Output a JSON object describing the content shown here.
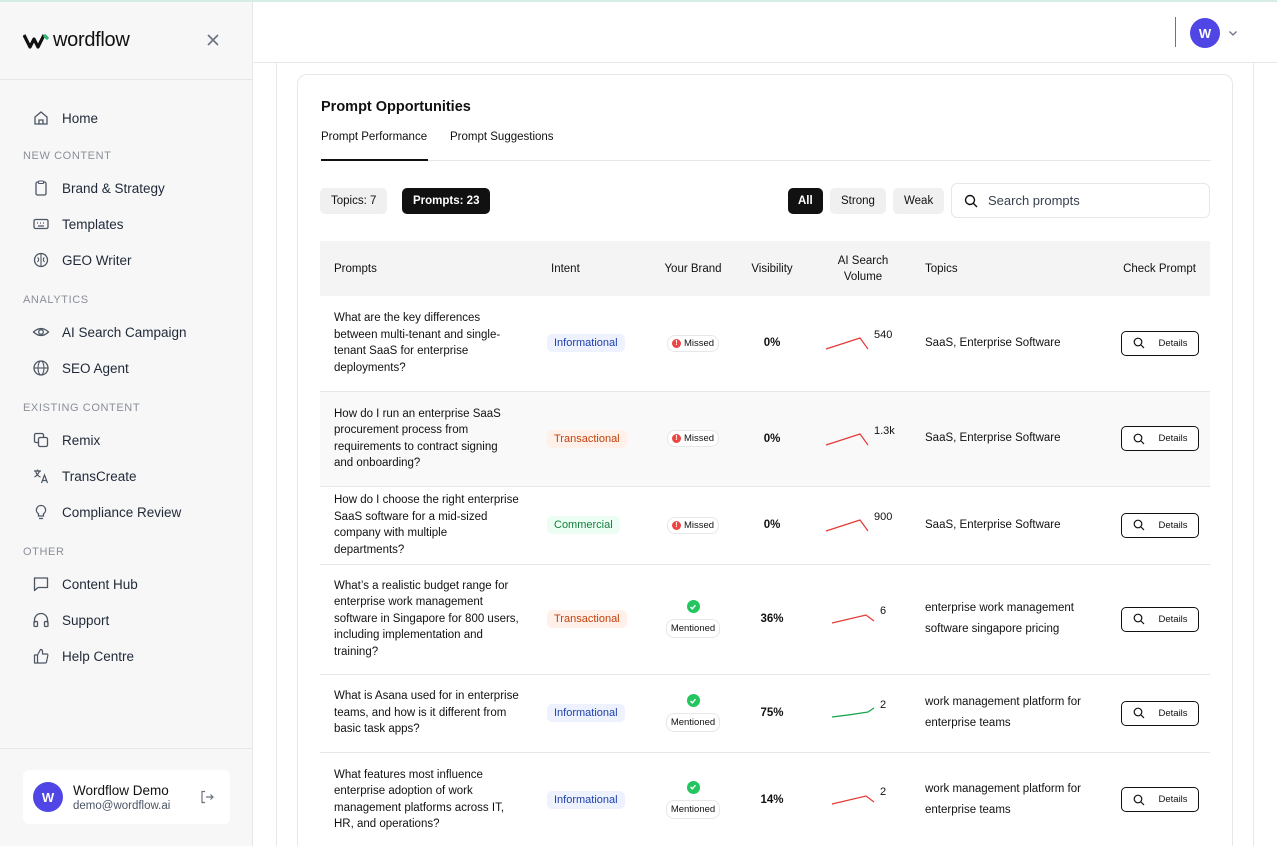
{
  "brand": {
    "name": "wordflow"
  },
  "sidebar": {
    "home": "Home",
    "sections": {
      "new_content": "NEW CONTENT",
      "analytics": "ANALYTICS",
      "existing_content": "EXISTING CONTENT",
      "other": "OTHER"
    },
    "new_content_items": [
      "Brand & Strategy",
      "Templates",
      "GEO Writer"
    ],
    "analytics_items": [
      "AI Search Campaign",
      "SEO Agent"
    ],
    "existing_items": [
      "Remix",
      "TransCreate",
      "Compliance Review"
    ],
    "other_items": [
      "Content Hub",
      "Support",
      "Help Centre"
    ],
    "user": {
      "initial": "W",
      "name": "Wordflow Demo",
      "email": "demo@wordflow.ai"
    }
  },
  "topbar": {
    "avatar_initial": "W"
  },
  "card": {
    "title": "Prompt Opportunities",
    "tabs": [
      "Prompt Performance",
      "Prompt Suggestions"
    ],
    "chips": {
      "topics": "Topics: 7",
      "prompts": "Prompts: 23"
    },
    "filters": [
      "All",
      "Strong",
      "Weak"
    ],
    "search_placeholder": "Search prompts"
  },
  "table": {
    "headers": [
      "Prompts",
      "Intent",
      "Your Brand",
      "Visibility",
      "AI Search Volume",
      "Topics",
      "Check Prompt"
    ],
    "details_label": "Details",
    "rows": [
      {
        "prompt": "What are the key differences between multi-tenant and single-tenant SaaS for enterprise deployments?",
        "intent": "Informational",
        "brand": "Missed",
        "visibility": "0%",
        "volume": "540",
        "trend": "red-up-down",
        "topics": "SaaS, Enterprise Software"
      },
      {
        "prompt": "How do I run an enterprise SaaS procurement process from requirements to contract signing and onboarding?",
        "intent": "Transactional",
        "brand": "Missed",
        "visibility": "0%",
        "volume": "1.3k",
        "trend": "red-up-down",
        "topics": "SaaS, Enterprise Software"
      },
      {
        "prompt": "How do I choose the right enterprise SaaS software for a mid-sized company with multiple departments?",
        "intent": "Commercial",
        "brand": "Missed",
        "visibility": "0%",
        "volume": "900",
        "trend": "red-up-down",
        "topics": "SaaS, Enterprise Software"
      },
      {
        "prompt": "What’s a realistic budget range for enterprise work management software in Singapore for 800 users, including implementation and training?",
        "intent": "Transactional",
        "brand": "Mentioned",
        "visibility": "36%",
        "volume": "6",
        "trend": "red-up-down",
        "topics": "enterprise work management software singapore pricing"
      },
      {
        "prompt": "What is Asana used for in enterprise teams, and how is it different from basic task apps?",
        "intent": "Informational",
        "brand": "Mentioned",
        "visibility": "75%",
        "volume": "2",
        "trend": "green-up",
        "topics": "work management platform for enterprise teams"
      },
      {
        "prompt": "What features most influence enterprise adoption of work management platforms across IT, HR, and operations?",
        "intent": "Informational",
        "brand": "Mentioned",
        "visibility": "14%",
        "volume": "2",
        "trend": "red-up-down",
        "topics": "work management platform for enterprise teams"
      }
    ]
  },
  "colors": {
    "accent": "#4f46e5",
    "missed": "#ef4444",
    "mentioned": "#22c55e",
    "trend_red": "#e53935",
    "trend_green": "#16a34a"
  }
}
